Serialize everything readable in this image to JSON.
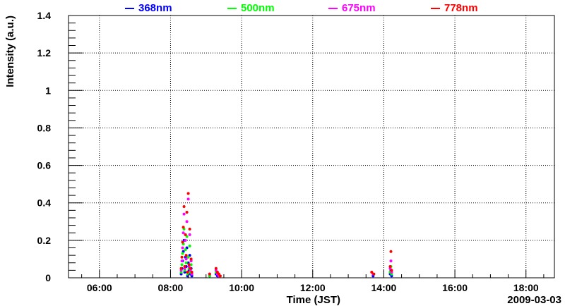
{
  "chart_data": {
    "type": "scatter",
    "xlabel": "Time (JST)",
    "ylabel": "Intensity (a.u.)",
    "date_label": "2009-03-03",
    "x_unit": "hours (JST)",
    "xlim": [
      5.13,
      18.8
    ],
    "ylim": [
      0,
      1.4
    ],
    "x_ticks": [
      6,
      8,
      10,
      12,
      14,
      16,
      18
    ],
    "x_tick_labels": [
      "06:00",
      "08:00",
      "10:00",
      "12:00",
      "14:00",
      "16:00",
      "18:00"
    ],
    "y_ticks": [
      0,
      0.2,
      0.4,
      0.6,
      0.8,
      1,
      1.2,
      1.4
    ],
    "y_tick_labels": [
      "0",
      "0.2",
      "0.4",
      "0.6",
      "0.8",
      "1",
      "1.2",
      "1.4"
    ],
    "grid": true,
    "legend_position": "top",
    "series": [
      {
        "name": "368nm",
        "color": "#0000ff",
        "points": [
          [
            8.3,
            0.02
          ],
          [
            8.32,
            0.05
          ],
          [
            8.34,
            0.09
          ],
          [
            8.36,
            0.14
          ],
          [
            8.38,
            0.2
          ],
          [
            8.4,
            0.03
          ],
          [
            8.42,
            0.11
          ],
          [
            8.44,
            0.06
          ],
          [
            8.46,
            0.16
          ],
          [
            8.48,
            0.01
          ],
          [
            8.5,
            0.08
          ],
          [
            8.52,
            0.04
          ],
          [
            8.54,
            0.12
          ],
          [
            8.56,
            0.02
          ],
          [
            8.58,
            0.05
          ],
          [
            8.6,
            0.01
          ],
          [
            9.1,
            0.01
          ],
          [
            9.28,
            0.02
          ],
          [
            9.32,
            0.01
          ],
          [
            13.7,
            0.01
          ],
          [
            14.18,
            0.02
          ],
          [
            14.2,
            0.04
          ],
          [
            14.22,
            0.01
          ]
        ]
      },
      {
        "name": "500nm",
        "color": "#00ff00",
        "points": [
          [
            8.3,
            0.03
          ],
          [
            8.32,
            0.07
          ],
          [
            8.34,
            0.13
          ],
          [
            8.36,
            0.18
          ],
          [
            8.38,
            0.26
          ],
          [
            8.4,
            0.04
          ],
          [
            8.42,
            0.15
          ],
          [
            8.44,
            0.08
          ],
          [
            8.46,
            0.22
          ],
          [
            8.48,
            0.02
          ],
          [
            8.5,
            0.11
          ],
          [
            8.52,
            0.05
          ],
          [
            8.54,
            0.17
          ],
          [
            8.56,
            0.03
          ],
          [
            8.58,
            0.07
          ],
          [
            8.6,
            0.02
          ],
          [
            9.1,
            0.01
          ],
          [
            9.28,
            0.03
          ],
          [
            9.32,
            0.02
          ],
          [
            9.36,
            0.01
          ],
          [
            13.7,
            0.02
          ],
          [
            14.18,
            0.03
          ],
          [
            14.2,
            0.06
          ],
          [
            14.22,
            0.02
          ]
        ]
      },
      {
        "name": "675nm",
        "color": "#ff00ff",
        "points": [
          [
            8.3,
            0.04
          ],
          [
            8.32,
            0.09
          ],
          [
            8.34,
            0.16
          ],
          [
            8.36,
            0.24
          ],
          [
            8.38,
            0.34
          ],
          [
            8.4,
            0.05
          ],
          [
            8.42,
            0.2
          ],
          [
            8.44,
            0.1
          ],
          [
            8.46,
            0.3
          ],
          [
            8.48,
            0.03
          ],
          [
            8.5,
            0.42
          ],
          [
            8.52,
            0.06
          ],
          [
            8.54,
            0.23
          ],
          [
            8.56,
            0.04
          ],
          [
            8.58,
            0.09
          ],
          [
            8.6,
            0.02
          ],
          [
            9.1,
            0.02
          ],
          [
            9.28,
            0.04
          ],
          [
            9.32,
            0.02
          ],
          [
            9.36,
            0.01
          ],
          [
            13.7,
            0.02
          ],
          [
            14.18,
            0.05
          ],
          [
            14.2,
            0.09
          ],
          [
            14.22,
            0.03
          ]
        ]
      },
      {
        "name": "778nm",
        "color": "#ff0000",
        "points": [
          [
            8.3,
            0.05
          ],
          [
            8.32,
            0.11
          ],
          [
            8.34,
            0.19
          ],
          [
            8.36,
            0.27
          ],
          [
            8.38,
            0.38
          ],
          [
            8.4,
            0.06
          ],
          [
            8.42,
            0.23
          ],
          [
            8.44,
            0.12
          ],
          [
            8.46,
            0.35
          ],
          [
            8.48,
            0.03
          ],
          [
            8.5,
            0.45
          ],
          [
            8.52,
            0.07
          ],
          [
            8.54,
            0.26
          ],
          [
            8.56,
            0.05
          ],
          [
            8.58,
            0.1
          ],
          [
            8.6,
            0.03
          ],
          [
            9.1,
            0.02
          ],
          [
            9.28,
            0.05
          ],
          [
            9.32,
            0.03
          ],
          [
            9.36,
            0.02
          ],
          [
            9.4,
            0.01
          ],
          [
            13.66,
            0.03
          ],
          [
            13.72,
            0.02
          ],
          [
            14.18,
            0.06
          ],
          [
            14.2,
            0.14
          ],
          [
            14.22,
            0.04
          ]
        ]
      }
    ]
  }
}
